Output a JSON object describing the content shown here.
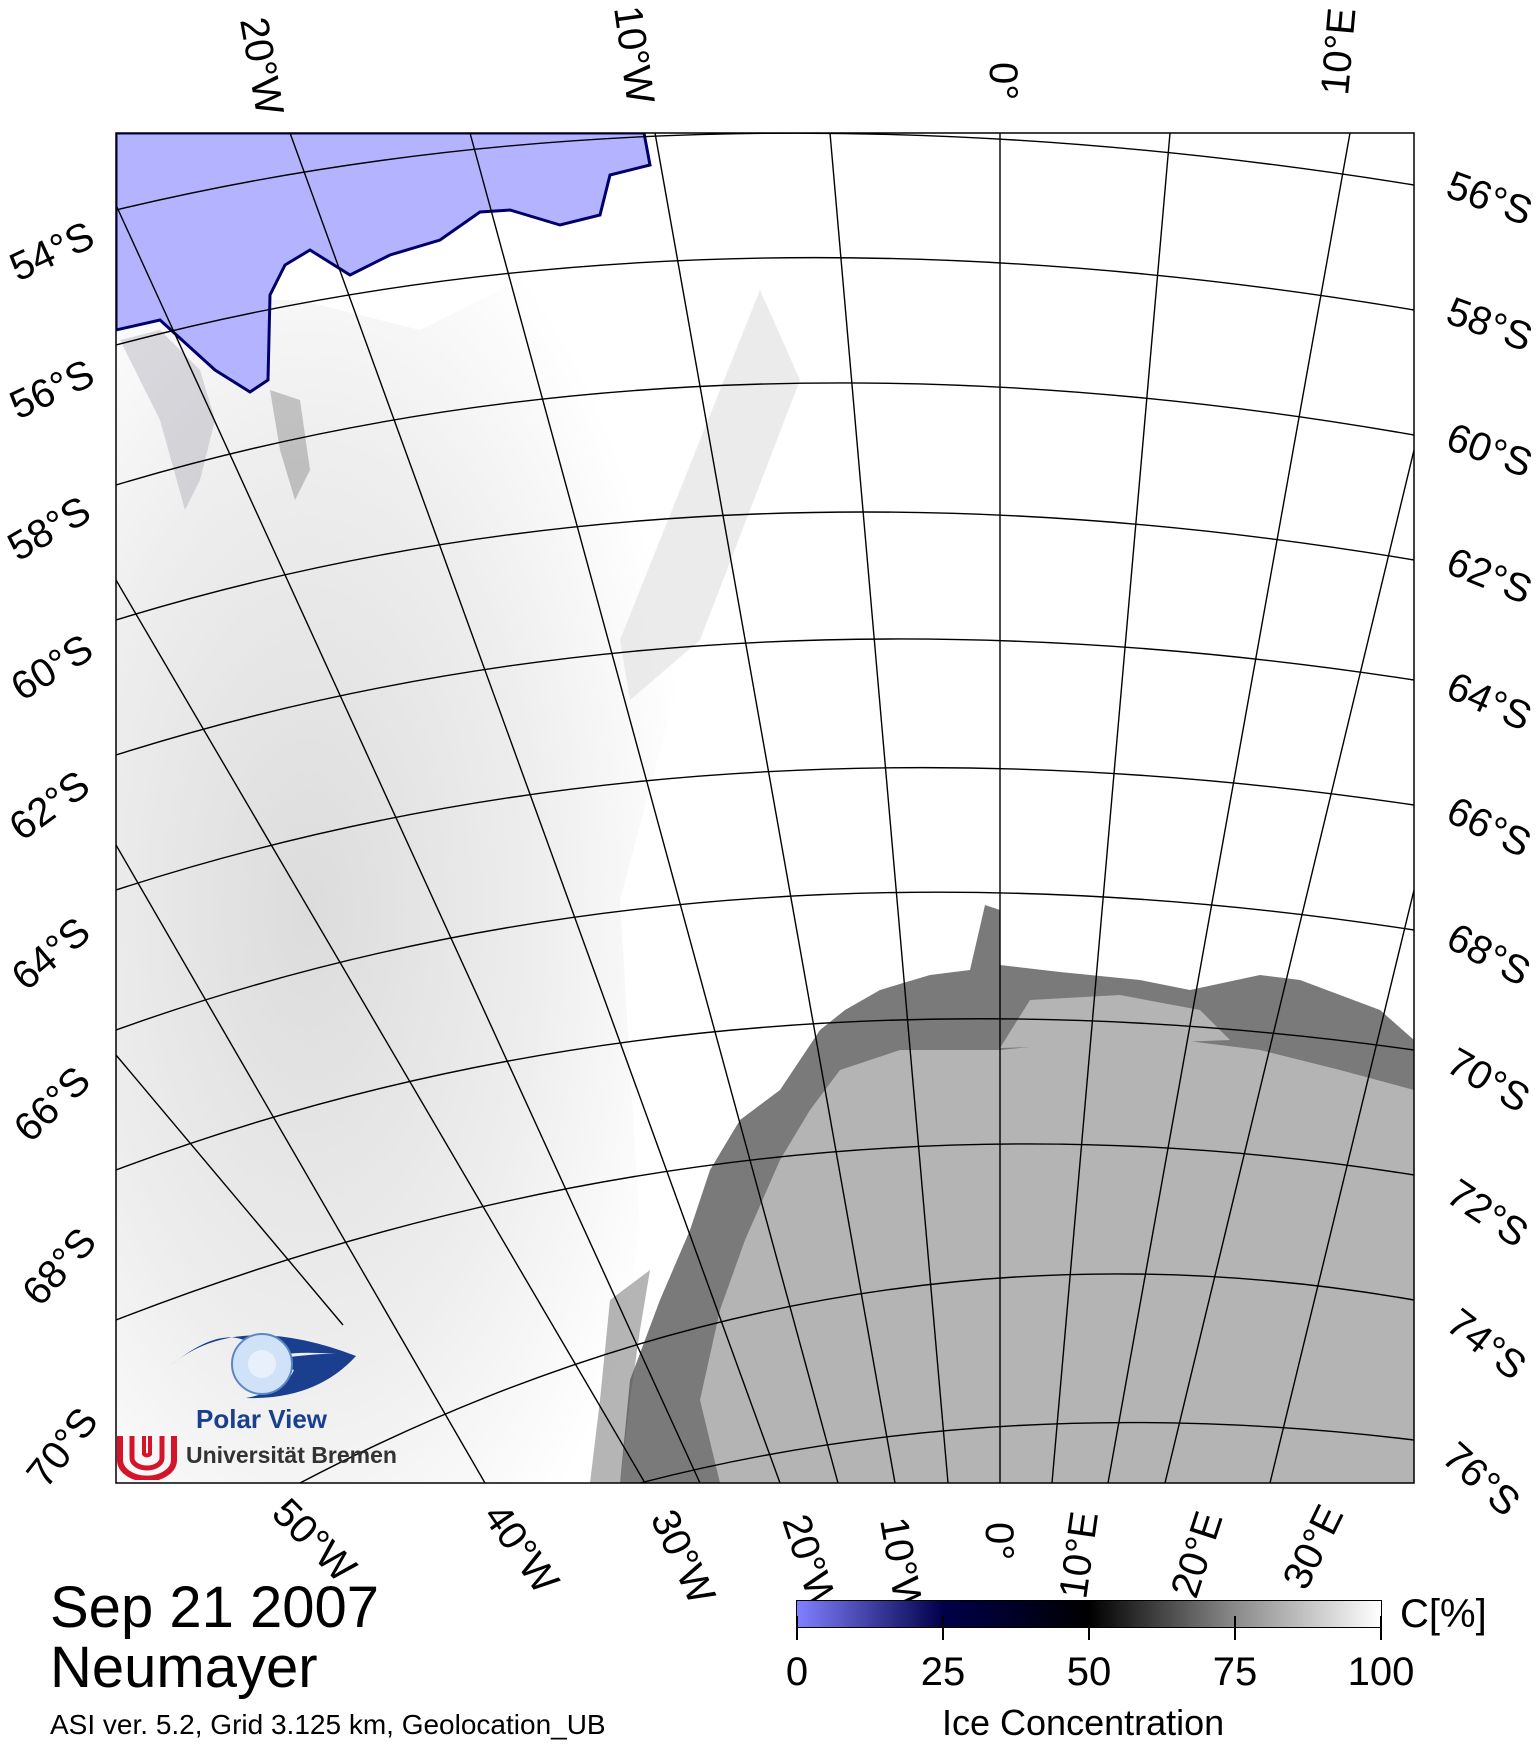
{
  "map": {
    "date": "Sep 21 2007",
    "station": "Neumayer",
    "meta": "ASI ver. 5.2,  Grid 3.125 km, Geolocation_UB",
    "top_lon_labels": [
      "20°W",
      "10°W",
      "0°",
      "10°E"
    ],
    "left_lat_labels": [
      "54°S",
      "56°S",
      "58°S",
      "60°S",
      "62°S",
      "64°S",
      "66°S",
      "68°S",
      "70°S"
    ],
    "right_lat_labels": [
      "56°S",
      "58°S",
      "60°S",
      "62°S",
      "64°S",
      "66°S",
      "68°S",
      "70°S",
      "72°S",
      "74°S",
      "76°S"
    ],
    "bottom_lon_labels": [
      "50°W",
      "40°W",
      "30°W",
      "20°W",
      "10°W",
      "0°",
      "10°E",
      "20°E",
      "30°E"
    ]
  },
  "colorbar": {
    "unit": "C[%]",
    "title": "Ice Concentration",
    "ticks": [
      "0",
      "25",
      "50",
      "75",
      "100"
    ],
    "gradient": [
      "#8080ff",
      "#00004a",
      "#000000",
      "#8a8a8a",
      "#ffffff"
    ]
  },
  "legend_colors": {
    "land_mask": "#b3b3ff",
    "ice_shelf": "#7a7a7a",
    "continent": "#b4b4b4"
  },
  "logo": {
    "title": "Polar View",
    "subtitle": "Universität Bremen"
  }
}
